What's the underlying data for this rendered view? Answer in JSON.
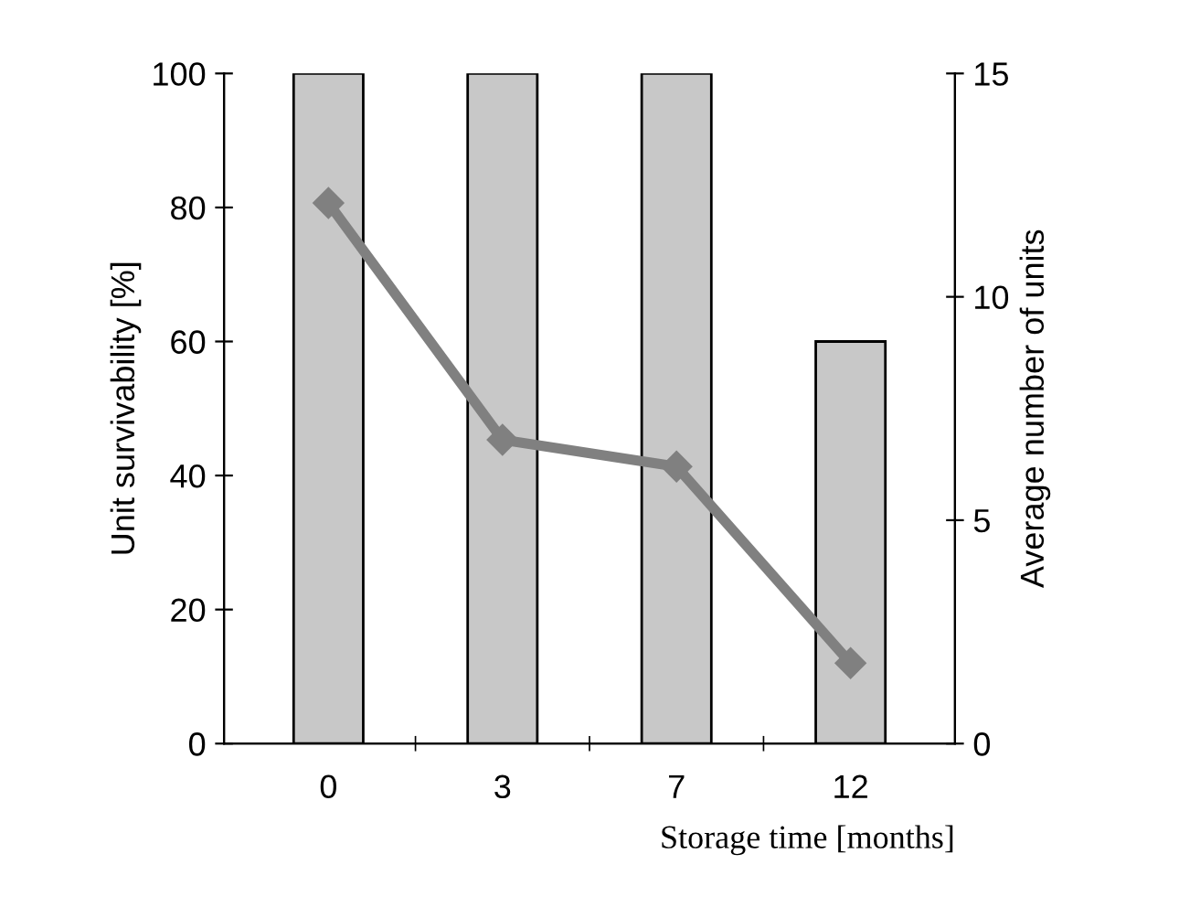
{
  "chart_data": {
    "type": "bar",
    "xlabel": "Storage time [months]",
    "ylabel": "Unit survivability [%]",
    "y2label": "Average number of units",
    "categories": [
      "0",
      "3",
      "7",
      "12"
    ],
    "series": [
      {
        "color": "#c8c8c8",
        "values": [
          100,
          100,
          100,
          60
        ]
      },
      {
        "type": "line",
        "axis": "y2",
        "color": "#808080",
        "marker": "diamond",
        "values": [
          12.1,
          6.8,
          6.2,
          1.8
        ]
      }
    ],
    "ylim": [
      0,
      100
    ],
    "yticks": [
      0,
      20,
      40,
      60,
      80,
      100
    ],
    "y2lim": [
      0,
      15
    ],
    "y2ticks": [
      0,
      5,
      10,
      15
    ],
    "grid": false,
    "legend": false
  }
}
